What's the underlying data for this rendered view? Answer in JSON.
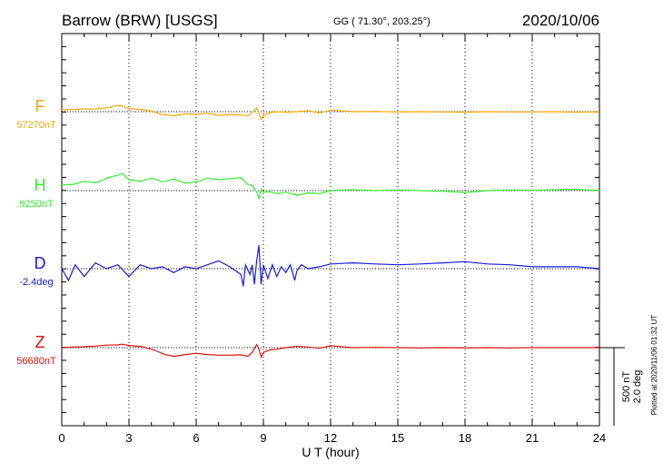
{
  "header": {
    "station": "Barrow (BRW)  [USGS]",
    "coords": "GG ( 71.30°, 203.25°)",
    "date": "2020/10/06"
  },
  "side_note": "Plotted at 2020/11/06 01:32 UT",
  "scale_bar": {
    "line1": "500 nT",
    "line2": "2.0 deg"
  },
  "chart_data": {
    "type": "line",
    "xlabel": "U T (hour)",
    "xlim": [
      0,
      24
    ],
    "xticks": [
      0,
      3,
      6,
      9,
      12,
      15,
      18,
      21,
      24
    ],
    "xtick_labels": [
      "0",
      "3",
      "6",
      "9",
      "12",
      "15",
      "18",
      "21",
      "24"
    ],
    "grid": "dotted vertical lines every 3 hours",
    "series": [
      {
        "name": "F",
        "baseline_label": "57270nT",
        "color": "#f5a800",
        "x": [
          0,
          0.5,
          1,
          1.5,
          2,
          2.5,
          2.7,
          3,
          3.5,
          4,
          4.5,
          5,
          5.5,
          6,
          6.5,
          7,
          7.5,
          8,
          8.3,
          8.5,
          8.7,
          8.8,
          8.9,
          9,
          9.3,
          9.6,
          10,
          10.5,
          11,
          11.5,
          12,
          13,
          14,
          15,
          16,
          17,
          18,
          19,
          20,
          21,
          22,
          23,
          24
        ],
        "y": [
          12,
          14,
          18,
          16,
          24,
          40,
          36,
          20,
          14,
          4,
          -20,
          -26,
          -14,
          -18,
          -10,
          -24,
          -18,
          -22,
          -28,
          -5,
          22,
          -10,
          -50,
          -25,
          -6,
          0,
          -4,
          0,
          6,
          -8,
          10,
          0,
          2,
          -2,
          0,
          -2,
          -4,
          0,
          -2,
          -2,
          0,
          -4,
          -2
        ]
      },
      {
        "name": "H",
        "baseline_label": "9250nT",
        "color": "#33ee33",
        "x": [
          0,
          0.5,
          1,
          1.5,
          2,
          2.5,
          2.7,
          3,
          3.5,
          4,
          4.5,
          5,
          5.5,
          6,
          6.5,
          7,
          7.5,
          8,
          8.3,
          8.5,
          8.7,
          8.8,
          8.9,
          9,
          9.3,
          9.6,
          10,
          10.5,
          11,
          11.5,
          12,
          13,
          14,
          15,
          16,
          17,
          18,
          19,
          20,
          21,
          22,
          23,
          24
        ],
        "y": [
          36,
          40,
          60,
          50,
          80,
          100,
          110,
          70,
          60,
          80,
          56,
          74,
          48,
          54,
          80,
          70,
          76,
          84,
          40,
          30,
          -10,
          -50,
          10,
          -10,
          -8,
          -20,
          -10,
          -30,
          -14,
          -20,
          0,
          6,
          0,
          4,
          0,
          -4,
          -12,
          0,
          4,
          2,
          6,
          8,
          0
        ]
      },
      {
        "name": "D",
        "baseline_label": "-2.4deg",
        "color": "#1a1adc",
        "x": [
          0,
          0.3,
          0.6,
          1,
          1.5,
          2,
          2.5,
          3,
          3.5,
          4,
          4.5,
          5,
          5.5,
          6,
          6.5,
          7,
          7.5,
          8,
          8.1,
          8.2,
          8.4,
          8.5,
          8.6,
          8.7,
          8.8,
          8.9,
          9,
          9.2,
          9.4,
          9.6,
          9.8,
          10,
          10.2,
          10.4,
          10.5,
          10.7,
          11,
          11.5,
          12,
          13,
          14,
          15,
          16,
          17,
          18,
          19,
          20,
          21,
          22,
          23,
          24
        ],
        "y": [
          0,
          -0.3,
          0.1,
          -0.2,
          0.15,
          0,
          0.1,
          -0.2,
          0.1,
          0,
          0.05,
          -0.1,
          0.05,
          0,
          0.1,
          0.2,
          0.05,
          -0.15,
          -0.45,
          0.1,
          -0.15,
          0.1,
          -0.4,
          0.2,
          0.6,
          -0.4,
          0.1,
          -0.25,
          0.1,
          -0.2,
          0.05,
          -0.1,
          0.1,
          -0.3,
          -0.05,
          0.1,
          0,
          0.05,
          0.12,
          0.15,
          0.12,
          0.1,
          0.12,
          0.15,
          0.18,
          0.12,
          0.1,
          0.05,
          0.05,
          0.05,
          0
        ]
      },
      {
        "name": "Z",
        "baseline_label": "56680nT",
        "color": "#dd1111",
        "x": [
          0,
          0.5,
          1,
          1.5,
          2,
          2.5,
          2.7,
          3,
          3.5,
          4,
          4.3,
          4.6,
          5,
          5.5,
          6,
          6.5,
          7,
          7.5,
          8,
          8.3,
          8.5,
          8.7,
          8.8,
          8.9,
          9,
          9.3,
          9.6,
          10,
          10.5,
          11,
          11.5,
          12,
          13,
          14,
          15,
          16,
          17,
          18,
          19,
          20,
          21,
          22,
          23,
          24
        ],
        "y": [
          0,
          4,
          6,
          10,
          16,
          18,
          22,
          14,
          8,
          -10,
          -26,
          -44,
          -56,
          -44,
          -36,
          -44,
          -48,
          -48,
          -46,
          -56,
          -30,
          20,
          -10,
          -60,
          -30,
          -14,
          -10,
          0,
          8,
          4,
          -4,
          12,
          0,
          2,
          0,
          -2,
          0,
          -2,
          0,
          -2,
          0,
          0,
          0,
          0
        ]
      }
    ]
  }
}
